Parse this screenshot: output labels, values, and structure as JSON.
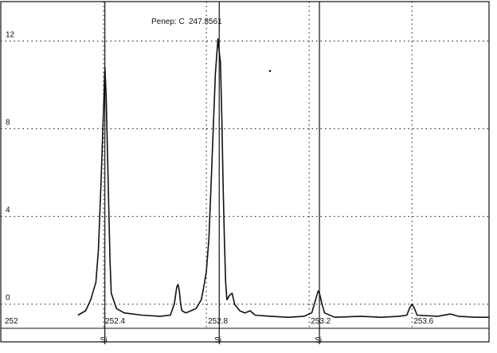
{
  "header": {
    "reference_label": "Penep: C",
    "reference_value": "247.8561"
  },
  "chart_data": {
    "type": "line",
    "title": "",
    "xlabel": "",
    "ylabel": "",
    "xlim": [
      252,
      253.9
    ],
    "ylim": [
      -1.1,
      13.8
    ],
    "x_ticks": [
      {
        "value": 252.0,
        "label": "252"
      },
      {
        "value": 252.4,
        "label": "252.4"
      },
      {
        "value": 252.8,
        "label": "252.8"
      },
      {
        "value": 253.2,
        "label": "253.2"
      },
      {
        "value": 253.6,
        "label": "253.6"
      }
    ],
    "y_ticks": [
      {
        "value": 0,
        "label": "0"
      },
      {
        "value": 4,
        "label": "4"
      },
      {
        "value": 8,
        "label": "8"
      },
      {
        "value": 12,
        "label": "12"
      }
    ],
    "grid": true,
    "element_markers": [
      {
        "x": 252.405,
        "label": "Si"
      },
      {
        "x": 252.85,
        "label": "Si"
      },
      {
        "x": 253.24,
        "label": "Si"
      }
    ],
    "series": [
      {
        "color": "#111111",
        "points": [
          [
            252.3,
            -0.5
          ],
          [
            252.33,
            -0.3
          ],
          [
            252.35,
            0.2
          ],
          [
            252.37,
            1.0
          ],
          [
            252.38,
            2.5
          ],
          [
            252.39,
            5.5
          ],
          [
            252.4,
            9.0
          ],
          [
            252.405,
            10.8
          ],
          [
            252.41,
            9.5
          ],
          [
            252.415,
            7.0
          ],
          [
            252.42,
            4.5
          ],
          [
            252.425,
            2.0
          ],
          [
            252.43,
            0.5
          ],
          [
            252.45,
            -0.2
          ],
          [
            252.48,
            -0.4
          ],
          [
            252.55,
            -0.5
          ],
          [
            252.62,
            -0.55
          ],
          [
            252.66,
            -0.5
          ],
          [
            252.675,
            0.0
          ],
          [
            252.685,
            0.8
          ],
          [
            252.69,
            0.9
          ],
          [
            252.695,
            0.6
          ],
          [
            252.7,
            0.0
          ],
          [
            252.705,
            -0.3
          ],
          [
            252.72,
            -0.4
          ],
          [
            252.74,
            -0.3
          ],
          [
            252.76,
            -0.2
          ],
          [
            252.78,
            0.2
          ],
          [
            252.79,
            0.8
          ],
          [
            252.8,
            1.5
          ],
          [
            252.81,
            3.0
          ],
          [
            252.82,
            6.0
          ],
          [
            252.83,
            9.0
          ],
          [
            252.835,
            10.5
          ],
          [
            252.845,
            12.1
          ],
          [
            252.855,
            11.0
          ],
          [
            252.86,
            8.5
          ],
          [
            252.865,
            5.5
          ],
          [
            252.87,
            3.0
          ],
          [
            252.875,
            1.0
          ],
          [
            252.88,
            0.2
          ],
          [
            252.89,
            0.4
          ],
          [
            252.9,
            0.5
          ],
          [
            252.91,
            0.0
          ],
          [
            252.93,
            -0.3
          ],
          [
            252.95,
            -0.4
          ],
          [
            252.97,
            -0.3
          ],
          [
            252.99,
            -0.5
          ],
          [
            253.05,
            -0.55
          ],
          [
            253.12,
            -0.6
          ],
          [
            253.18,
            -0.55
          ],
          [
            253.21,
            -0.4
          ],
          [
            253.225,
            0.2
          ],
          [
            253.235,
            0.6
          ],
          [
            253.24,
            0.5
          ],
          [
            253.25,
            0.0
          ],
          [
            253.26,
            -0.4
          ],
          [
            253.3,
            -0.6
          ],
          [
            253.4,
            -0.55
          ],
          [
            253.48,
            -0.6
          ],
          [
            253.55,
            -0.55
          ],
          [
            253.58,
            -0.5
          ],
          [
            253.59,
            -0.2
          ],
          [
            253.6,
            0.0
          ],
          [
            253.61,
            -0.2
          ],
          [
            253.62,
            -0.5
          ],
          [
            253.7,
            -0.55
          ],
          [
            253.75,
            -0.45
          ],
          [
            253.78,
            -0.55
          ],
          [
            253.85,
            -0.6
          ],
          [
            253.9,
            -0.6
          ]
        ]
      }
    ]
  }
}
